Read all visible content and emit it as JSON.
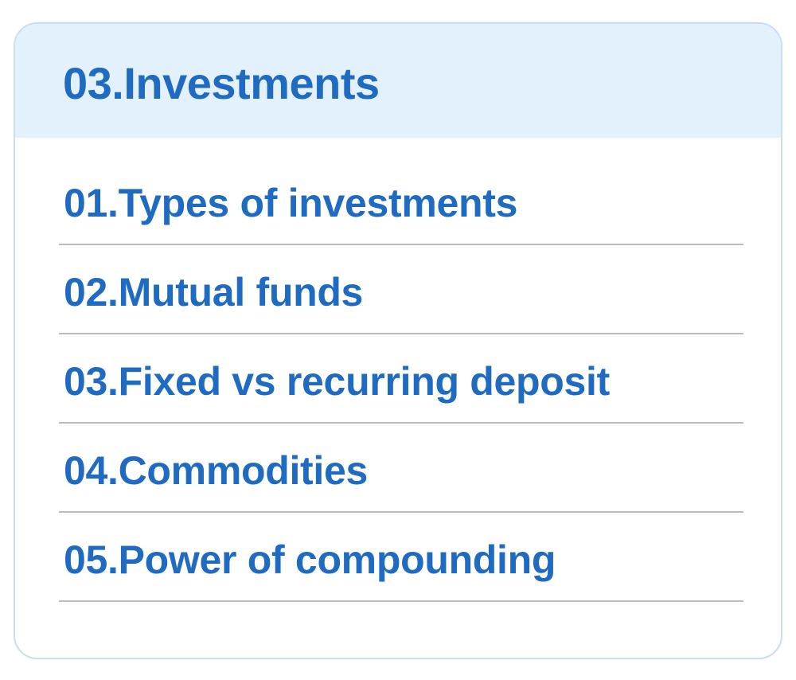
{
  "section": {
    "title": "03.Investments",
    "items": [
      {
        "label": "01.Types of investments"
      },
      {
        "label": "02.Mutual funds"
      },
      {
        "label": "03.Fixed vs recurring deposit"
      },
      {
        "label": "04.Commodities"
      },
      {
        "label": "05.Power of compounding"
      }
    ]
  },
  "colors": {
    "accent": "#1f6bc1",
    "header_bg": "#e3f1fd",
    "border": "#c9def2",
    "divider": "#bdbdbd"
  }
}
